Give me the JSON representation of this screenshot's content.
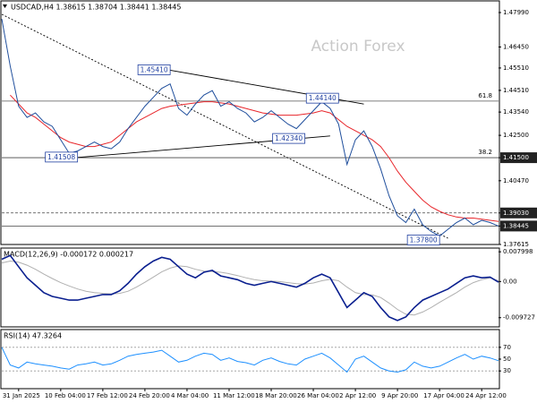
{
  "chart_data": [
    {
      "type": "line",
      "title": "USDCAD,H4  1.38615 1.38704 1.38441 1.38445",
      "watermark": "Action Forex",
      "ylim": [
        1.3762,
        1.4851
      ],
      "yticks": [
        {
          "value": 1.4799,
          "label": "1.47990"
        },
        {
          "value": 1.4645,
          "label": "1.46450"
        },
        {
          "value": 1.4551,
          "label": "1.45510"
        },
        {
          "value": 1.4451,
          "label": "1.44510"
        },
        {
          "value": 1.4354,
          "label": "1.43540"
        },
        {
          "value": 1.425,
          "label": "1.42500"
        },
        {
          "value": 1.415,
          "label": "1.41500",
          "highlight": true
        },
        {
          "value": 1.4047,
          "label": "1.40470"
        },
        {
          "value": 1.3903,
          "label": "1.39030",
          "highlight": true
        },
        {
          "value": 1.38445,
          "label": "1.38445",
          "highlight": true
        },
        {
          "value": 1.3762,
          "label": "1.37615"
        }
      ],
      "series": [
        {
          "color": "#1f4e9c",
          "values": [
            1.477,
            1.456,
            1.438,
            1.433,
            1.435,
            1.431,
            1.429,
            1.423,
            1.417,
            1.418,
            1.42,
            1.422,
            1.42,
            1.419,
            1.422,
            1.428,
            1.433,
            1.438,
            1.442,
            1.446,
            1.448,
            1.437,
            1.434,
            1.439,
            1.443,
            1.445,
            1.438,
            1.44,
            1.437,
            1.435,
            1.431,
            1.433,
            1.436,
            1.433,
            1.43,
            1.428,
            1.432,
            1.436,
            1.44,
            1.437,
            1.43,
            1.412,
            1.423,
            1.427,
            1.42,
            1.41,
            1.398,
            1.389,
            1.386,
            1.392,
            1.385,
            1.382,
            1.38,
            1.383,
            1.386,
            1.388,
            1.385,
            1.387,
            1.386,
            1.38445
          ]
        },
        {
          "color": "#e8262b",
          "values": [
            null,
            1.443,
            1.439,
            1.435,
            1.433,
            1.43,
            1.427,
            1.424,
            1.422,
            1.421,
            1.42,
            1.42,
            1.421,
            1.422,
            1.425,
            1.428,
            1.431,
            1.433,
            1.435,
            1.437,
            1.438,
            1.4385,
            1.439,
            1.4395,
            1.44,
            1.44,
            1.4395,
            1.439,
            1.438,
            1.437,
            1.436,
            1.435,
            1.4345,
            1.434,
            1.434,
            1.434,
            1.4345,
            1.435,
            1.436,
            1.435,
            1.432,
            1.429,
            1.427,
            1.425,
            1.423,
            1.42,
            1.415,
            1.409,
            1.404,
            1.4,
            1.396,
            1.393,
            1.391,
            1.3895,
            1.3885,
            1.388,
            1.388,
            1.3875,
            1.387,
            1.3865
          ]
        }
      ],
      "levels": [
        {
          "label": "61.8",
          "value": 1.4403
        },
        {
          "label": "38.2",
          "value": 1.415
        }
      ],
      "annotations": [
        {
          "label": "1.45410",
          "value": 1.4541,
          "index": 20
        },
        {
          "label": "1.44140",
          "value": 1.4414,
          "index": 40
        },
        {
          "label": "1.42340",
          "value": 1.4234,
          "index": 36
        },
        {
          "label": "1.41508",
          "value": 1.41508,
          "index": 9
        },
        {
          "label": "1.37800",
          "value": 1.378,
          "index": 52
        }
      ],
      "trendlines": [
        {
          "x": [
            0,
            53
          ],
          "y": [
            1.4791,
            1.379
          ],
          "dashed": true
        },
        {
          "x": [
            20,
            43
          ],
          "y": [
            1.4541,
            1.439
          ],
          "dashed": false
        },
        {
          "x": [
            9,
            39
          ],
          "y": [
            1.4151,
            1.4247
          ],
          "dashed": false
        }
      ]
    },
    {
      "type": "line",
      "title": "MACD(12,26,9) -0.000172 0.000217",
      "ylim": [
        -0.0122,
        0.009
      ],
      "yticks": [
        {
          "value": 0.007998,
          "label": "0.007998"
        },
        {
          "value": 0,
          "label": "0.00"
        },
        {
          "value": -0.009727,
          "label": "-0.009727"
        }
      ],
      "series": [
        {
          "color": "#0a1f8f",
          "values": [
            0.006,
            0.007,
            0.004,
            0.001,
            -0.001,
            -0.003,
            -0.004,
            -0.0045,
            -0.005,
            -0.005,
            -0.0045,
            -0.004,
            -0.0035,
            -0.0035,
            -0.0025,
            -0.0005,
            0.002,
            0.004,
            0.0055,
            0.0065,
            0.006,
            0.004,
            0.002,
            0.001,
            0.0025,
            0.003,
            0.0015,
            0.001,
            0.0005,
            -0.0005,
            -0.001,
            -0.0005,
            0,
            -0.0005,
            -0.001,
            -0.0015,
            -0.0005,
            0.001,
            0.002,
            0.001,
            -0.003,
            -0.007,
            -0.005,
            -0.003,
            -0.004,
            -0.007,
            -0.0095,
            -0.0105,
            -0.0095,
            -0.007,
            -0.005,
            -0.004,
            -0.003,
            -0.002,
            -0.0005,
            0.001,
            0.0015,
            0.001,
            0.0012,
            -0.000172
          ]
        },
        {
          "color": "#b0b0b0",
          "values": [
            0.005,
            0.0055,
            0.0052,
            0.0044,
            0.0033,
            0.002,
            0.0008,
            -0.0003,
            -0.0012,
            -0.002,
            -0.0026,
            -0.003,
            -0.0032,
            -0.0033,
            -0.0032,
            -0.0026,
            -0.0015,
            -0.0002,
            0.0012,
            0.0026,
            0.0036,
            0.0042,
            0.004,
            0.0033,
            0.0028,
            0.0027,
            0.0025,
            0.0021,
            0.0016,
            0.001,
            0.0005,
            0.0002,
            0.0001,
            0,
            -0.0003,
            -0.0006,
            -0.0007,
            -0.0004,
            0.0002,
            0.0006,
            0.0002,
            -0.0015,
            -0.003,
            -0.0035,
            -0.0036,
            -0.0043,
            -0.0058,
            -0.0075,
            -0.0088,
            -0.009,
            -0.0082,
            -0.007,
            -0.0056,
            -0.0043,
            -0.003,
            -0.0015,
            -0.0003,
            0.0005,
            0.001,
            0.000217
          ]
        }
      ]
    },
    {
      "type": "line",
      "title": "RSI(14) 47.3264",
      "ylim": [
        0,
        100
      ],
      "yticks": [
        70,
        50,
        30
      ],
      "levels": [
        {
          "value": 70
        },
        {
          "value": 30
        }
      ],
      "categories": [
        null,
        null,
        "31 Jan 2025",
        null,
        null,
        null,
        null,
        "10 Feb 04:00",
        null,
        null,
        null,
        null,
        "17 Feb 12:00",
        null,
        null,
        null,
        null,
        "24 Feb 20:00",
        null,
        null,
        null,
        null,
        "4 Mar 04:00",
        null,
        null,
        null,
        null,
        "11 Mar 12:00",
        null,
        null,
        null,
        null,
        "18 Mar 20:00",
        null,
        null,
        null,
        null,
        "26 Mar 04:00",
        null,
        null,
        null,
        null,
        "2 Apr 12:00",
        null,
        null,
        null,
        null,
        "9 Apr 20:00",
        null,
        null,
        null,
        null,
        "17 Apr 04:00",
        null,
        null,
        null,
        null,
        "24 Apr 12:00",
        null,
        null
      ],
      "series": [
        {
          "color": "#1e90ff",
          "values": [
            70,
            40,
            35,
            45,
            42,
            40,
            38,
            35,
            33,
            40,
            42,
            45,
            40,
            42,
            48,
            55,
            58,
            60,
            62,
            65,
            55,
            45,
            48,
            55,
            60,
            58,
            48,
            52,
            46,
            44,
            40,
            48,
            52,
            46,
            42,
            40,
            50,
            55,
            60,
            52,
            40,
            28,
            50,
            55,
            45,
            35,
            30,
            28,
            32,
            45,
            38,
            35,
            38,
            45,
            52,
            58,
            50,
            55,
            52,
            47.3264
          ]
        }
      ]
    }
  ]
}
